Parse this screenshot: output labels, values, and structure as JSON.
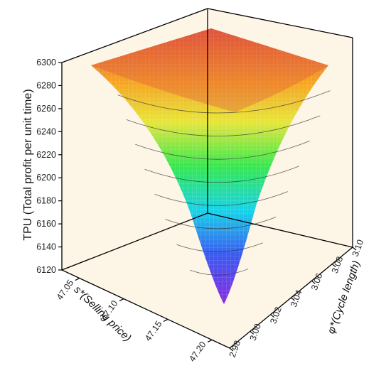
{
  "chart_data": {
    "type": "surface",
    "z_axis": {
      "label": "TPU (Total profit per unit time)",
      "ticks": [
        6120,
        6140,
        6160,
        6180,
        6200,
        6220,
        6240,
        6260,
        6280,
        6300
      ],
      "range": [
        6120,
        6300
      ]
    },
    "x_axis": {
      "label": "s*(Selling price)",
      "ticks": [
        47.05,
        47.1,
        47.15,
        47.2
      ],
      "tick_labels": [
        "47.05",
        "47.10",
        "47.15",
        "47.20"
      ],
      "range": [
        47.03,
        47.22
      ]
    },
    "y_axis": {
      "label": "φ*(Cycle length)",
      "ticks": [
        2.98,
        3.0,
        3.02,
        3.04,
        3.06,
        3.08,
        3.1
      ],
      "tick_labels": [
        "2.98",
        "3.00",
        "3.02",
        "3.04",
        "3.06",
        "3.08",
        "3.10"
      ],
      "range": [
        2.98,
        3.1
      ]
    },
    "surface": {
      "min": {
        "x": 47.2,
        "y": 3.0,
        "z": 6120
      },
      "max_corner": {
        "x": 47.05,
        "y": 3.1,
        "z": 6300
      },
      "contour_levels": [
        6140,
        6160,
        6180,
        6200,
        6220,
        6240,
        6260,
        6280
      ],
      "colormap": [
        "#8a2be2",
        "#3a5bf0",
        "#17d3e8",
        "#36e84f",
        "#e7e63a",
        "#f5a623",
        "#e0533c"
      ]
    },
    "colors": {
      "background_panel": "#fdf5e6",
      "box_edges": "#000000"
    }
  }
}
